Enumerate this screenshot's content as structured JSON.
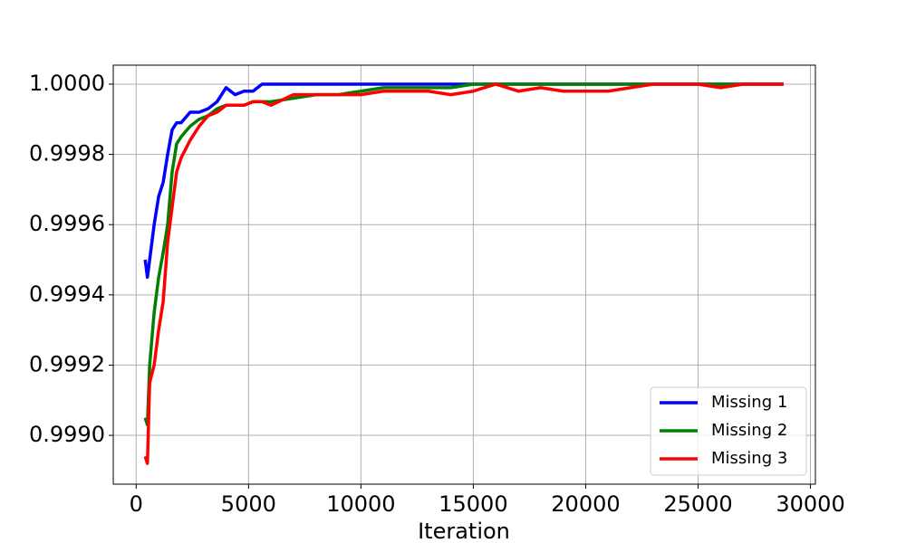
{
  "chart_data": {
    "type": "line",
    "xlabel": "Iteration",
    "x": [
      400,
      500,
      600,
      800,
      1000,
      1200,
      1400,
      1600,
      1800,
      2000,
      2400,
      2800,
      3200,
      3600,
      4000,
      4400,
      4800,
      5200,
      5600,
      6000,
      7000,
      8000,
      9000,
      10000,
      11000,
      12000,
      13000,
      14000,
      15000,
      16000,
      17000,
      18000,
      19000,
      20000,
      21000,
      22000,
      23000,
      24000,
      25000,
      26000,
      27000,
      28000,
      28800
    ],
    "series": [
      {
        "name": "Missing 1",
        "color": "#0000ff",
        "values": [
          0.9995,
          0.99945,
          0.9995,
          0.9996,
          0.99968,
          0.99972,
          0.9998,
          0.99987,
          0.99989,
          0.99989,
          0.99992,
          0.99992,
          0.99993,
          0.99995,
          0.99999,
          0.99997,
          0.99998,
          0.99998,
          1.0,
          1.0,
          1.0,
          1.0,
          1.0,
          1.0,
          1.0,
          1.0,
          1.0,
          1.0,
          1.0,
          1.0,
          1.0,
          1.0,
          1.0,
          1.0,
          1.0,
          1.0,
          1.0,
          1.0,
          1.0,
          1.0,
          1.0,
          1.0,
          1.0
        ]
      },
      {
        "name": "Missing 2",
        "color": "#008000",
        "values": [
          0.99905,
          0.99903,
          0.9992,
          0.99935,
          0.99945,
          0.99952,
          0.9996,
          0.99975,
          0.99983,
          0.99985,
          0.99988,
          0.9999,
          0.99991,
          0.99993,
          0.99994,
          0.99994,
          0.99994,
          0.99995,
          0.99995,
          0.99995,
          0.99996,
          0.99997,
          0.99997,
          0.99998,
          0.99999,
          0.99999,
          0.99999,
          0.99999,
          1.0,
          1.0,
          1.0,
          1.0,
          1.0,
          1.0,
          1.0,
          1.0,
          1.0,
          1.0,
          1.0,
          1.0,
          1.0,
          1.0,
          1.0
        ]
      },
      {
        "name": "Missing 3",
        "color": "#ff0000",
        "values": [
          0.99894,
          0.99892,
          0.99915,
          0.9992,
          0.9993,
          0.99938,
          0.99955,
          0.99965,
          0.99975,
          0.99979,
          0.99984,
          0.99988,
          0.99991,
          0.99992,
          0.99994,
          0.99994,
          0.99994,
          0.99995,
          0.99995,
          0.99994,
          0.99997,
          0.99997,
          0.99997,
          0.99997,
          0.99998,
          0.99998,
          0.99998,
          0.99997,
          0.99998,
          1.0,
          0.99998,
          0.99999,
          0.99998,
          0.99998,
          0.99998,
          0.99999,
          1.0,
          1.0,
          1.0,
          0.99999,
          1.0,
          1.0,
          1.0
        ]
      }
    ],
    "xlim": [
      -1020,
      30220
    ],
    "ylim": [
      0.998861,
      1.000054
    ],
    "xticks": [
      0,
      5000,
      10000,
      15000,
      20000,
      25000,
      30000
    ],
    "yticks": [
      {
        "value": 0.999,
        "label": "0.9990"
      },
      {
        "value": 0.9992,
        "label": "0.9992"
      },
      {
        "value": 0.9994,
        "label": "0.9994"
      },
      {
        "value": 0.9996,
        "label": "0.9996"
      },
      {
        "value": 0.9998,
        "label": "0.9998"
      },
      {
        "value": 1.0,
        "label": "1.0000"
      }
    ],
    "grid": true,
    "legend": "lower right"
  }
}
